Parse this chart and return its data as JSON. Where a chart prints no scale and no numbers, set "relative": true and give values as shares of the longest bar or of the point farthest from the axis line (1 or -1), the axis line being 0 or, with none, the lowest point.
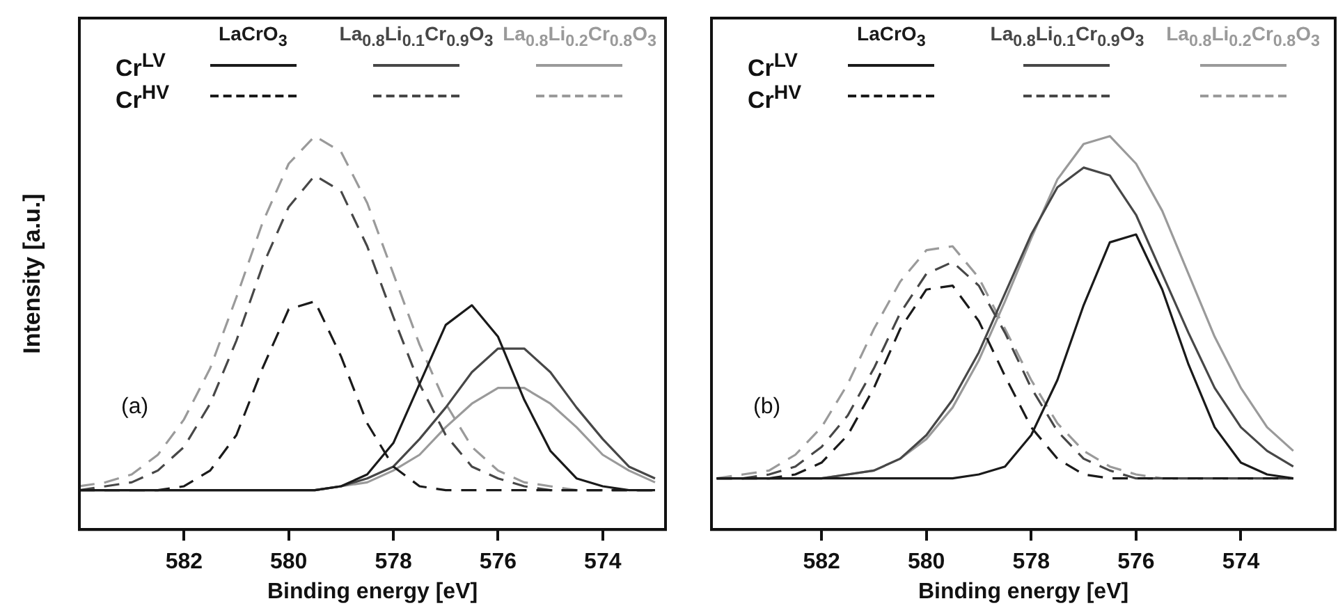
{
  "chart_data": [
    {
      "type": "line",
      "xlabel": "Binding energy [eV]",
      "ylabel": "Intensity [a.u.]",
      "relative": true,
      "legend": "top",
      "marker": "none",
      "grid": false,
      "annotations": [
        "(a)",
        "Cr$^{LV}$",
        "Cr$^{HV}$"
      ],
      "xlim": [
        584,
        572.8
      ],
      "xticks": [
        582,
        580,
        578,
        576,
        574
      ],
      "x": [
        584,
        583.5,
        583,
        582.5,
        582,
        581.5,
        581,
        580.5,
        580,
        579.5,
        579,
        578.5,
        578,
        577.5,
        577,
        576.5,
        576,
        575.5,
        575,
        574.5,
        574,
        573.5,
        573
      ],
      "series": [
        {
          "name": "LaCrO$_{3}$",
          "color": "#1a1a1a",
          "line_style": "solid",
          "values": [
            0.1,
            0.1,
            0.1,
            0.1,
            0.1,
            0.1,
            0.1,
            0.1,
            0.1,
            0.1,
            0.11,
            0.14,
            0.22,
            0.37,
            0.52,
            0.57,
            0.49,
            0.33,
            0.2,
            0.13,
            0.11,
            0.1,
            0.1
          ]
        },
        {
          "color": "#1a1a1a",
          "line_style": "dashed",
          "values": [
            0.1,
            0.1,
            0.1,
            0.1,
            0.11,
            0.15,
            0.24,
            0.41,
            0.56,
            0.58,
            0.44,
            0.27,
            0.16,
            0.11,
            0.1,
            0.1,
            0.1,
            0.1,
            0.1,
            0.1,
            0.1,
            0.1,
            0.1
          ]
        },
        {
          "name": "La$_{0.8}$Li$_{0.1}$Cr$_{0.9}$O$_{3}$",
          "color": "#474747",
          "line_style": "solid",
          "values": [
            0.1,
            0.1,
            0.1,
            0.1,
            0.1,
            0.1,
            0.1,
            0.1,
            0.1,
            0.1,
            0.11,
            0.13,
            0.16,
            0.23,
            0.31,
            0.4,
            0.46,
            0.46,
            0.4,
            0.31,
            0.23,
            0.16,
            0.13
          ]
        },
        {
          "color": "#474747",
          "line_style": "dashed",
          "values": [
            0.1,
            0.11,
            0.12,
            0.15,
            0.21,
            0.32,
            0.48,
            0.67,
            0.82,
            0.9,
            0.86,
            0.72,
            0.54,
            0.37,
            0.24,
            0.16,
            0.13,
            0.11,
            0.1,
            0.1,
            0.1,
            0.1,
            0.1
          ]
        },
        {
          "name": "La$_{0.8}$Li$_{0.2}$Cr$_{0.8}$O$_{3}$",
          "color": "#9a9a9a",
          "line_style": "solid",
          "values": [
            0.1,
            0.1,
            0.1,
            0.1,
            0.1,
            0.1,
            0.1,
            0.1,
            0.1,
            0.1,
            0.11,
            0.12,
            0.15,
            0.19,
            0.26,
            0.32,
            0.36,
            0.36,
            0.32,
            0.26,
            0.19,
            0.15,
            0.12
          ]
        },
        {
          "color": "#9a9a9a",
          "line_style": "dashed",
          "values": [
            0.11,
            0.12,
            0.14,
            0.19,
            0.28,
            0.41,
            0.59,
            0.78,
            0.93,
            1.0,
            0.96,
            0.83,
            0.65,
            0.47,
            0.32,
            0.21,
            0.15,
            0.12,
            0.11,
            0.1,
            0.1,
            0.1,
            0.1
          ]
        }
      ]
    },
    {
      "type": "line",
      "xlabel": "Binding energy [eV]",
      "relative": true,
      "legend": "top",
      "marker": "none",
      "grid": false,
      "annotations": [
        "(b)",
        "Cr$^{LV}$",
        "Cr$^{HV}$"
      ],
      "xlim": [
        584.1,
        572.2
      ],
      "xticks": [
        582,
        580,
        578,
        576,
        574
      ],
      "x": [
        584,
        583.5,
        583,
        582.5,
        582,
        581.5,
        581,
        580.5,
        580,
        579.5,
        579,
        578.5,
        578,
        577.5,
        577,
        576.5,
        576,
        575.5,
        575,
        574.5,
        574,
        573.5,
        573
      ],
      "series": [
        {
          "name": "LaCrO$_{3}$",
          "color": "#1a1a1a",
          "line_style": "solid",
          "values": [
            0.13,
            0.13,
            0.13,
            0.13,
            0.13,
            0.13,
            0.13,
            0.13,
            0.13,
            0.13,
            0.14,
            0.16,
            0.24,
            0.38,
            0.57,
            0.73,
            0.75,
            0.61,
            0.42,
            0.26,
            0.17,
            0.14,
            0.13
          ]
        },
        {
          "color": "#1a1a1a",
          "line_style": "dashed",
          "values": [
            0.13,
            0.13,
            0.13,
            0.14,
            0.17,
            0.24,
            0.36,
            0.51,
            0.61,
            0.62,
            0.53,
            0.39,
            0.26,
            0.18,
            0.14,
            0.13,
            0.13,
            0.13,
            0.13,
            0.13,
            0.13,
            0.13,
            0.13
          ]
        },
        {
          "name": "La$_{0.8}$Li$_{0.1}$Cr$_{0.9}$O$_{3}$",
          "color": "#474747",
          "line_style": "solid",
          "values": [
            0.13,
            0.13,
            0.13,
            0.13,
            0.13,
            0.14,
            0.15,
            0.18,
            0.24,
            0.33,
            0.45,
            0.6,
            0.75,
            0.87,
            0.92,
            0.9,
            0.8,
            0.65,
            0.5,
            0.36,
            0.26,
            0.2,
            0.16
          ]
        },
        {
          "color": "#474747",
          "line_style": "dashed",
          "values": [
            0.13,
            0.13,
            0.14,
            0.16,
            0.21,
            0.29,
            0.41,
            0.55,
            0.65,
            0.68,
            0.62,
            0.5,
            0.36,
            0.25,
            0.18,
            0.15,
            0.13,
            0.13,
            0.13,
            0.13,
            0.13,
            0.13,
            0.13
          ]
        },
        {
          "name": "La$_{0.8}$Li$_{0.2}$Cr$_{0.8}$O$_{3}$",
          "color": "#9a9a9a",
          "line_style": "solid",
          "values": [
            0.13,
            0.13,
            0.13,
            0.13,
            0.13,
            0.14,
            0.15,
            0.18,
            0.23,
            0.31,
            0.43,
            0.58,
            0.74,
            0.89,
            0.98,
            1.0,
            0.93,
            0.81,
            0.65,
            0.49,
            0.36,
            0.26,
            0.2
          ]
        },
        {
          "color": "#9a9a9a",
          "line_style": "dashed",
          "values": [
            0.13,
            0.14,
            0.15,
            0.19,
            0.26,
            0.37,
            0.51,
            0.63,
            0.71,
            0.72,
            0.64,
            0.51,
            0.38,
            0.27,
            0.2,
            0.16,
            0.14,
            0.13,
            0.13,
            0.13,
            0.13,
            0.13,
            0.13
          ]
        }
      ]
    }
  ]
}
